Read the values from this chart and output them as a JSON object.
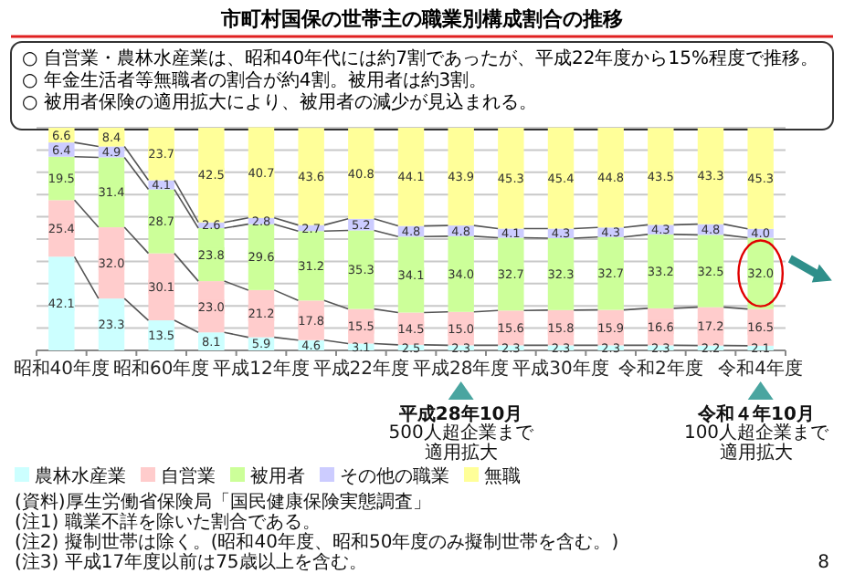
{
  "chart_data": {
    "type": "bar",
    "stacked": true,
    "title": "市町村国保の世帯主の職業別構成割合の推移",
    "subtitle": "○ 自営業・農林水産業は、昭和40年代には約7割であったが、平成22年度から15%程度で推移。\n○ 年金生活者等無職者の割合が約4割。被用者は約3割。\n○ 被用者保険の適用拡大により、被用者の減少が見込まれる。",
    "categories": [
      "昭和40年度",
      null,
      "昭和60年度",
      null,
      "平成12年度",
      null,
      "平成22年度",
      null,
      "平成28年度",
      null,
      "平成30年度",
      null,
      "令和2年度",
      null,
      "令和4年度"
    ],
    "series": [
      {
        "name": "農林水産業",
        "color": "#ccffff",
        "values": [
          42.1,
          23.3,
          13.5,
          8.1,
          5.9,
          4.6,
          3.1,
          2.5,
          2.3,
          2.3,
          2.3,
          2.3,
          2.3,
          2.2,
          2.1
        ],
        "value_labels": [
          "42.1",
          "23.3",
          "13.5",
          "8.1",
          "5.9",
          "4.6",
          "3.1",
          "2.5",
          "2.3",
          "2.3",
          "2.3",
          "2.3",
          "2.3",
          "2.2",
          "2.1"
        ]
      },
      {
        "name": "自営業",
        "color": "#ffcccc",
        "values": [
          25.4,
          32.0,
          30.1,
          23.0,
          21.2,
          17.8,
          15.5,
          14.5,
          15.0,
          15.6,
          15.8,
          15.9,
          16.6,
          17.2,
          16.5
        ],
        "value_labels": [
          "25.4",
          "32.0",
          "30.1",
          "23.0",
          "21.2",
          "17.8",
          "15.5",
          "14.5",
          "15.0",
          "15.6",
          "15.8",
          "15.9",
          "16.6",
          "17.2",
          "16.5"
        ]
      },
      {
        "name": "被用者",
        "color": "#ccff99",
        "values": [
          19.5,
          31.4,
          28.7,
          23.8,
          29.6,
          31.2,
          35.3,
          34.1,
          34.0,
          32.7,
          32.3,
          32.7,
          33.2,
          32.5,
          32.0
        ],
        "value_labels": [
          "19.5",
          "31.4",
          "28.7",
          "23.8",
          "29.6",
          "31.2",
          "35.3",
          "34.1",
          "34.0",
          "32.7",
          "32.3",
          "32.7",
          "33.2",
          "32.5",
          "32.0"
        ]
      },
      {
        "name": "その他の職業",
        "color": "#ccccff",
        "values": [
          6.4,
          4.9,
          4.1,
          2.6,
          2.8,
          2.7,
          5.2,
          4.8,
          4.8,
          4.1,
          4.3,
          4.3,
          4.3,
          4.8,
          4.0
        ],
        "value_labels": [
          "6.4",
          "4.9",
          "4.1",
          "2.6",
          "2.8",
          "2.7",
          "5.2",
          "4.8",
          "4.8",
          "4.1",
          "4.3",
          "4.3",
          "4.3",
          "4.8",
          "4.0"
        ]
      },
      {
        "name": "無職",
        "color": "#ffff99",
        "values": [
          6.6,
          8.4,
          23.7,
          42.5,
          40.7,
          43.6,
          40.8,
          44.1,
          43.9,
          45.3,
          45.4,
          44.8,
          43.5,
          43.3,
          45.3
        ],
        "value_labels": [
          "6.6",
          "8.4",
          "23.7",
          "42.5",
          "40.7",
          "43.6",
          "40.8",
          "44.1",
          "43.9",
          "45.3",
          "45.4",
          "44.8",
          "43.5",
          "43.3",
          "45.3"
        ]
      }
    ],
    "ylim": [
      0,
      100
    ],
    "yticks": [
      {
        "value": 0,
        "label": null
      },
      {
        "value": 10,
        "label": null
      },
      {
        "value": 20,
        "label": null
      },
      {
        "value": 30,
        "label": null
      },
      {
        "value": 40,
        "label": null
      },
      {
        "value": 50,
        "label": null
      },
      {
        "value": 60,
        "label": null
      },
      {
        "value": 70,
        "label": null
      },
      {
        "value": 80,
        "label": null
      },
      {
        "value": 90,
        "label": null
      },
      {
        "value": 100,
        "label": null
      }
    ],
    "tick_labels": "x",
    "grid": "y",
    "legend": "bottom left",
    "annotations": [
      "(資料)厚生労働省保険局「国民健康保険実態調査」",
      "(注1) 職業不詳を除いた割合である。",
      "(注2) 擬制世帯は除く。(昭和40年度、昭和50年度のみ擬制世帯を含む。)",
      "(注3) 平成17年度以前は75歳以上を含む。",
      "平成28年10月",
      "500人超企業まで適用拡大",
      "令和４年10月",
      "100人超企業まで適用拡大",
      "8"
    ]
  }
}
